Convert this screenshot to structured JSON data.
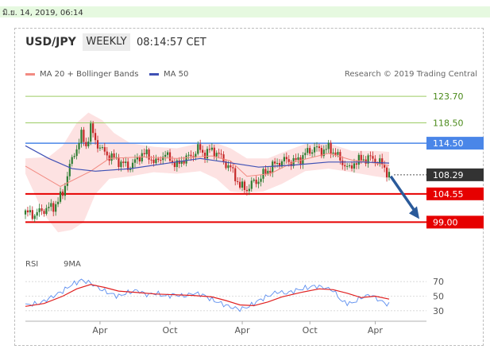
{
  "header": {
    "date": "มิ.ย. 14, 2019, 06:14",
    "symbol": "USD/JPY",
    "timeframe": "WEEKLY",
    "time": "08:14:57 CET"
  },
  "legend": {
    "ma20": "MA 20 + Bollinger Bands",
    "ma50": "MA 50",
    "credit": "Research © 2019 Trading Central",
    "rsi": "RSI",
    "rsi_ma": "9MA"
  },
  "colors": {
    "candle_up": "#2e7d32",
    "candle_down": "#c62828",
    "band_fill": "#fde2e2",
    "ma20": "#f28b82",
    "ma50": "#3f51b5",
    "resistance_blue": "#4a86e8",
    "green_level": "#9ccc65",
    "support_red": "#e60000",
    "arrow": "#2a5a9a",
    "rsi_line": "#5b8def",
    "rsi_ma": "#e02020"
  },
  "chart_data": [
    {
      "type": "candlestick",
      "title": "USD/JPY WEEKLY",
      "x_ticks": [
        "Apr",
        "Oct",
        "Apr",
        "Oct",
        "Apr"
      ],
      "levels": [
        {
          "value": 123.7,
          "label": "123.70",
          "style": "green-line"
        },
        {
          "value": 118.5,
          "label": "118.50",
          "style": "green-line"
        },
        {
          "value": 114.5,
          "label": "114.50",
          "style": "blue-line-box"
        },
        {
          "value": 108.29,
          "label": "108.29",
          "style": "current-price"
        },
        {
          "value": 104.55,
          "label": "104.55",
          "style": "red-line-box"
        },
        {
          "value": 99.0,
          "label": "99.00",
          "style": "red-line-box"
        }
      ],
      "ylim": [
        95.0,
        127.0
      ],
      "close_path": [
        [
          0,
          100.8
        ],
        [
          4,
          100.5
        ],
        [
          8,
          101.5
        ],
        [
          12,
          102.0
        ],
        [
          16,
          104.5
        ],
        [
          18,
          108.5
        ],
        [
          21,
          112.5
        ],
        [
          24,
          116.0
        ],
        [
          26,
          114.0
        ],
        [
          28,
          117.5
        ],
        [
          30,
          115.0
        ],
        [
          33,
          113.0
        ],
        [
          36,
          112.0
        ],
        [
          40,
          111.0
        ],
        [
          44,
          109.8
        ],
        [
          47,
          110.8
        ],
        [
          50,
          112.5
        ],
        [
          53,
          112.0
        ],
        [
          56,
          110.5
        ],
        [
          59,
          112.3
        ],
        [
          62,
          111.5
        ],
        [
          65,
          110.0
        ],
        [
          68,
          111.5
        ],
        [
          71,
          111.8
        ],
        [
          74,
          113.5
        ],
        [
          76,
          112.5
        ],
        [
          79,
          113.0
        ],
        [
          82,
          112.8
        ],
        [
          85,
          111.0
        ],
        [
          88,
          109.5
        ],
        [
          90,
          108.0
        ],
        [
          92,
          106.0
        ],
        [
          95,
          105.5
        ],
        [
          97,
          106.5
        ],
        [
          100,
          107.3
        ],
        [
          103,
          108.8
        ],
        [
          106,
          110.0
        ],
        [
          109,
          110.8
        ],
        [
          112,
          111.2
        ],
        [
          115,
          110.8
        ],
        [
          118,
          111.5
        ],
        [
          121,
          112.8
        ],
        [
          124,
          113.5
        ],
        [
          127,
          113.0
        ],
        [
          130,
          113.5
        ],
        [
          133,
          112.6
        ],
        [
          135,
          111.0
        ],
        [
          137,
          110.4
        ],
        [
          139,
          109.2
        ],
        [
          141,
          110.8
        ],
        [
          144,
          111.2
        ],
        [
          147,
          111.6
        ],
        [
          150,
          111.2
        ],
        [
          152,
          110.7
        ],
        [
          154,
          109.6
        ],
        [
          156,
          108.3
        ]
      ],
      "ma20_path": [
        [
          0,
          110.0
        ],
        [
          15,
          106.0
        ],
        [
          28,
          109.0
        ],
        [
          36,
          111.5
        ],
        [
          50,
          111.8
        ],
        [
          65,
          111.5
        ],
        [
          80,
          112.0
        ],
        [
          88,
          111.0
        ],
        [
          95,
          108.0
        ],
        [
          105,
          108.5
        ],
        [
          115,
          110.8
        ],
        [
          130,
          112.5
        ],
        [
          140,
          111.2
        ],
        [
          150,
          110.6
        ],
        [
          156,
          110.1
        ]
      ],
      "ma50_path": [
        [
          0,
          114.0
        ],
        [
          10,
          111.5
        ],
        [
          20,
          109.5
        ],
        [
          30,
          109.0
        ],
        [
          45,
          109.5
        ],
        [
          60,
          110.5
        ],
        [
          75,
          111.5
        ],
        [
          90,
          110.5
        ],
        [
          100,
          109.8
        ],
        [
          115,
          110.2
        ],
        [
          130,
          110.8
        ],
        [
          145,
          110.8
        ],
        [
          156,
          110.6
        ]
      ],
      "bb_upper": [
        [
          0,
          111.5
        ],
        [
          10,
          111.8
        ],
        [
          16,
          114.0
        ],
        [
          22,
          118.5
        ],
        [
          27,
          120.5
        ],
        [
          33,
          119.0
        ],
        [
          38,
          116.5
        ],
        [
          45,
          114.5
        ],
        [
          55,
          113.8
        ],
        [
          65,
          113.5
        ],
        [
          75,
          114.5
        ],
        [
          82,
          114.5
        ],
        [
          88,
          113.5
        ],
        [
          95,
          111.5
        ],
        [
          104,
          111.5
        ],
        [
          112,
          113.0
        ],
        [
          121,
          114.5
        ],
        [
          130,
          114.5
        ],
        [
          140,
          113.0
        ],
        [
          150,
          113.0
        ],
        [
          156,
          112.8
        ]
      ],
      "bb_lower": [
        [
          0,
          108.5
        ],
        [
          8,
          100.5
        ],
        [
          14,
          97.0
        ],
        [
          20,
          97.5
        ],
        [
          25,
          99.0
        ],
        [
          30,
          104.5
        ],
        [
          36,
          107.5
        ],
        [
          45,
          108.0
        ],
        [
          55,
          108.8
        ],
        [
          65,
          108.5
        ],
        [
          75,
          109.0
        ],
        [
          82,
          107.5
        ],
        [
          88,
          105.0
        ],
        [
          94,
          104.8
        ],
        [
          102,
          105.0
        ],
        [
          110,
          106.5
        ],
        [
          120,
          109.0
        ],
        [
          130,
          109.5
        ],
        [
          140,
          108.8
        ],
        [
          150,
          108.0
        ],
        [
          156,
          107.6
        ]
      ]
    },
    {
      "type": "line",
      "title": "RSI",
      "series": [
        {
          "name": "RSI",
          "values": [
            [
              0,
              38
            ],
            [
              6,
              40
            ],
            [
              12,
              50
            ],
            [
              16,
              57
            ],
            [
              20,
              66
            ],
            [
              24,
              72
            ],
            [
              28,
              68
            ],
            [
              32,
              60
            ],
            [
              36,
              54
            ],
            [
              40,
              50
            ],
            [
              44,
              55
            ],
            [
              48,
              58
            ],
            [
              52,
              52
            ],
            [
              56,
              54
            ],
            [
              60,
              50
            ],
            [
              64,
              52
            ],
            [
              68,
              50
            ],
            [
              72,
              54
            ],
            [
              76,
              52
            ],
            [
              80,
              45
            ],
            [
              84,
              40
            ],
            [
              88,
              35
            ],
            [
              92,
              32
            ],
            [
              96,
              36
            ],
            [
              100,
              44
            ],
            [
              104,
              50
            ],
            [
              108,
              56
            ],
            [
              112,
              54
            ],
            [
              116,
              58
            ],
            [
              120,
              61
            ],
            [
              124,
              64
            ],
            [
              128,
              62
            ],
            [
              132,
              58
            ],
            [
              136,
              42
            ],
            [
              140,
              40
            ],
            [
              144,
              48
            ],
            [
              148,
              52
            ],
            [
              152,
              44
            ],
            [
              156,
              38
            ]
          ]
        },
        {
          "name": "9MA",
          "values": [
            [
              0,
              36
            ],
            [
              8,
              40
            ],
            [
              16,
              50
            ],
            [
              22,
              60
            ],
            [
              28,
              66
            ],
            [
              34,
              62
            ],
            [
              40,
              57
            ],
            [
              48,
              55
            ],
            [
              56,
              53
            ],
            [
              64,
              52
            ],
            [
              72,
              51
            ],
            [
              80,
              49
            ],
            [
              86,
              44
            ],
            [
              92,
              38
            ],
            [
              98,
              37
            ],
            [
              104,
              42
            ],
            [
              110,
              49
            ],
            [
              118,
              55
            ],
            [
              126,
              60
            ],
            [
              132,
              59
            ],
            [
              138,
              54
            ],
            [
              144,
              48
            ],
            [
              150,
              50
            ],
            [
              156,
              46
            ]
          ]
        }
      ],
      "levels": [
        {
          "value": 70,
          "label": "70"
        },
        {
          "value": 50,
          "label": "50"
        },
        {
          "value": 30,
          "label": "30"
        }
      ],
      "ylim": [
        20,
        80
      ]
    }
  ]
}
